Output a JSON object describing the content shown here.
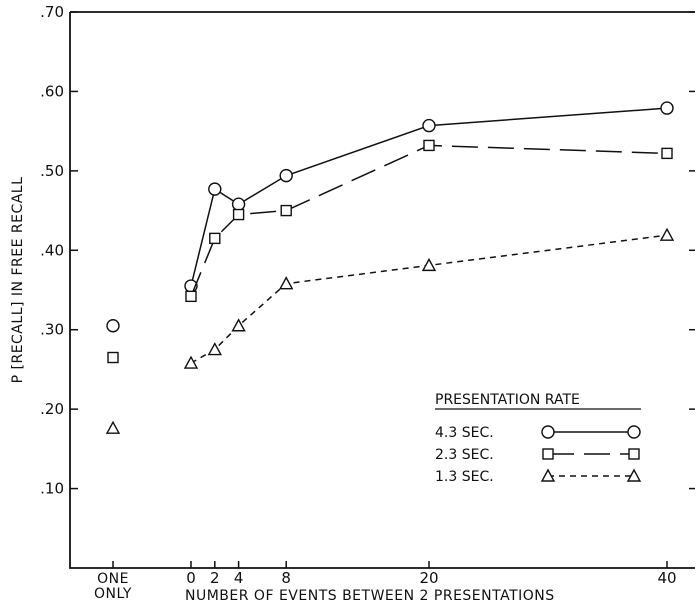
{
  "chart_data": {
    "type": "line",
    "ylabel": "P [RECALL] IN FREE RECALL",
    "xlabel": "NUMBER OF EVENTS BETWEEN 2 PRESENTATIONS",
    "ylim": [
      0,
      0.7
    ],
    "xlim": [
      0,
      40
    ],
    "y_ticks": [
      ".10",
      ".20",
      ".30",
      ".40",
      ".50",
      ".60",
      ".70"
    ],
    "y_tick_values": [
      0.1,
      0.2,
      0.3,
      0.4,
      0.5,
      0.6,
      0.7
    ],
    "x_ticks": [
      "0",
      "2",
      "4",
      "8",
      "20",
      "40"
    ],
    "x_tick_values": [
      0,
      2,
      4,
      8,
      20,
      40
    ],
    "one_only_label": [
      "ONE",
      "ONLY"
    ],
    "legend_title": "PRESENTATION RATE",
    "legend_placement": "bottom-right",
    "grid": false,
    "series": [
      {
        "name": "4.3 SEC.",
        "marker": "circle",
        "dash": "solid",
        "one_only": 0.305,
        "x": [
          0,
          2,
          4,
          8,
          20,
          40
        ],
        "y": [
          0.355,
          0.477,
          0.458,
          0.494,
          0.557,
          0.579
        ]
      },
      {
        "name": "2.3 SEC.",
        "marker": "square",
        "dash": "long-dash",
        "one_only": 0.265,
        "x": [
          0,
          2,
          4,
          8,
          20,
          40
        ],
        "y": [
          0.342,
          0.415,
          0.445,
          0.45,
          0.532,
          0.522
        ]
      },
      {
        "name": "1.3 SEC.",
        "marker": "triangle",
        "dash": "short-dash",
        "one_only": 0.176,
        "x": [
          0,
          2,
          4,
          8,
          20,
          40
        ],
        "y": [
          0.258,
          0.275,
          0.305,
          0.358,
          0.381,
          0.419
        ]
      }
    ]
  }
}
